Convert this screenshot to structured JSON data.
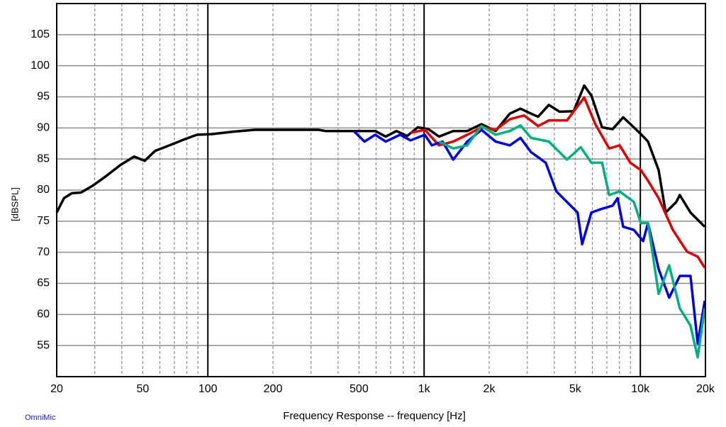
{
  "chart_data": {
    "type": "line",
    "ylabel": "[dBSPL]",
    "xlabel": "Frequency Response -- frequency [Hz]",
    "watermark": "OmniMic",
    "xscale": "log",
    "xlim": [
      20,
      20000
    ],
    "ylim": [
      50,
      110
    ],
    "xticks": [
      20,
      50,
      100,
      200,
      500,
      {
        "value": 1000,
        "label": "1k"
      },
      {
        "value": 2000,
        "label": "2k"
      },
      {
        "value": 5000,
        "label": "5k"
      },
      {
        "value": 10000,
        "label": "10k"
      },
      {
        "value": 20000,
        "label": "20k"
      }
    ],
    "xticks_minor": [
      30,
      40,
      60,
      70,
      80,
      90,
      300,
      400,
      600,
      700,
      800,
      900,
      3000,
      4000,
      6000,
      7000,
      8000,
      9000
    ],
    "yticks": [
      55,
      60,
      65,
      70,
      75,
      80,
      85,
      90,
      95,
      100,
      105
    ],
    "grid": true,
    "series": [
      {
        "color": "#000000",
        "x": [
          20,
          21.6,
          23.5,
          25.9,
          29.3,
          34,
          39.3,
          45.6,
          51,
          57,
          66.5,
          77,
          89,
          104,
          131,
          165,
          223,
          325,
          350,
          473,
          594,
          665,
          745,
          835,
          935,
          1047,
          1172,
          1363,
          1584,
          1842,
          2143,
          2492,
          2790,
          3122,
          3366,
          3774,
          4229,
          4918,
          5502,
          5935,
          6652,
          7444,
          8334,
          9331,
          10060,
          10850,
          12150,
          13090,
          14670,
          15220,
          17060,
          19850
        ],
        "values": [
          76.4,
          78.7,
          79.5,
          79.6,
          80.7,
          82.3,
          84,
          85.4,
          84.7,
          86.3,
          87.2,
          88.1,
          88.9,
          89,
          89.4,
          89.7,
          89.7,
          89.7,
          89.5,
          89.5,
          89.5,
          88.6,
          89.5,
          88.7,
          90.1,
          89.8,
          88.6,
          89.5,
          89.5,
          90.6,
          89.5,
          92.3,
          93.1,
          92.3,
          91.8,
          93.7,
          92.6,
          92.7,
          96.8,
          95.2,
          90.1,
          89.8,
          91.7,
          90.1,
          89,
          87.8,
          83.2,
          76.4,
          78.1,
          79.2,
          76.4,
          74.1
        ]
      },
      {
        "color": "#e00000",
        "x": [
          866,
          1008,
          1172,
          1363,
          1584,
          1842,
          2143,
          2492,
          2900,
          3366,
          3774,
          4578,
          5502,
          6190,
          7172,
          8025,
          8984,
          10060,
          10850,
          12150,
          14130,
          16440,
          18420,
          19850
        ],
        "values": [
          89.2,
          89.7,
          87.2,
          87.8,
          88.9,
          90.1,
          89.7,
          91.4,
          92,
          90.3,
          91.2,
          91.2,
          94.9,
          90.6,
          86.7,
          87.2,
          84.4,
          83.2,
          81.5,
          78.7,
          73.6,
          70.1,
          69.3,
          67.5
        ]
      },
      {
        "color": "#0000e0",
        "x": [
          473,
          530,
          594,
          665,
          774,
          866,
          1008,
          1086,
          1217,
          1363,
          1584,
          1842,
          2143,
          2492,
          2790,
          3122,
          3650,
          4087,
          4578,
          5124,
          5380,
          5935,
          6652,
          7444,
          7850,
          8334,
          9331,
          10300,
          10850,
          12150,
          13590,
          15220,
          17060,
          18420,
          19850
        ],
        "values": [
          89.5,
          87.8,
          88.9,
          87.8,
          88.9,
          88,
          88.9,
          87.2,
          87.8,
          84.9,
          87.8,
          89.7,
          87.8,
          87.2,
          88.4,
          86.1,
          84.4,
          79.8,
          78.1,
          76.4,
          71.3,
          76.4,
          77,
          77.5,
          78.7,
          74.1,
          73.6,
          71.8,
          74.7,
          67.3,
          62.7,
          66.2,
          66.2,
          55.3,
          62.2
        ]
      },
      {
        "color": "#00b080",
        "x": [
          1172,
          1363,
          1584,
          1842,
          2143,
          2492,
          2790,
          3122,
          3774,
          4578,
          5300,
          5935,
          6652,
          7172,
          8025,
          9331,
          10060,
          10850,
          12150,
          13590,
          15220,
          17060,
          18420,
          19850
        ],
        "values": [
          87.8,
          86.7,
          87.2,
          90.3,
          88.9,
          89.5,
          90.4,
          88.4,
          87.8,
          84.9,
          86.9,
          84.4,
          84.4,
          79.2,
          79.8,
          78.1,
          74.7,
          74.7,
          63.3,
          67.9,
          61,
          58.2,
          53.1,
          61
        ]
      }
    ]
  }
}
